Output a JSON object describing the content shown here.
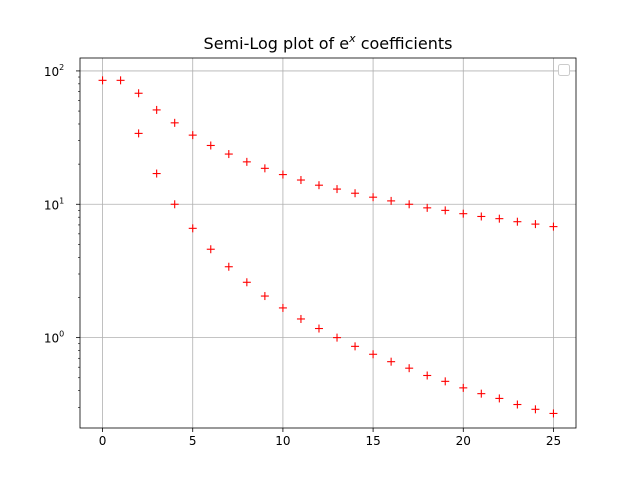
{
  "chart_data": {
    "type": "scatter",
    "title": {
      "text": "Semi-Log plot of e",
      "sup": "x",
      "suffix": " coefficients"
    },
    "xlabel": "",
    "ylabel": "",
    "xlim": [
      -1.25,
      26.25
    ],
    "ylim": [
      0.21,
      125
    ],
    "y_scale": "log",
    "x_ticks": [
      0,
      5,
      10,
      15,
      20,
      25
    ],
    "y_ticks": [
      {
        "value": 1,
        "base": "10",
        "exp": "0"
      },
      {
        "value": 10,
        "base": "10",
        "exp": "1"
      },
      {
        "value": 100,
        "base": "10",
        "exp": "2"
      }
    ],
    "grid": true,
    "legend": {
      "placement": "top-right",
      "entries": []
    },
    "marker": "+",
    "color": "#ff0000",
    "series": [
      {
        "x": [
          0,
          1,
          2,
          3,
          4,
          5,
          6,
          7,
          8,
          9,
          10,
          11,
          12,
          13,
          14,
          15,
          16,
          17,
          18,
          19,
          20,
          21,
          22,
          23,
          24,
          25
        ],
        "values": [
          85.0,
          85.0,
          68.0,
          51.0,
          40.8,
          33.0,
          27.6,
          23.8,
          20.8,
          18.6,
          16.7,
          15.2,
          13.9,
          13.0,
          12.1,
          11.3,
          10.6,
          10.0,
          9.4,
          9.0,
          8.5,
          8.1,
          7.8,
          7.4,
          7.1,
          6.8
        ]
      },
      {
        "x": [
          2,
          3,
          4,
          5,
          6,
          7,
          8,
          9,
          10,
          11,
          12,
          13,
          14,
          15,
          16,
          17,
          18,
          19,
          20,
          21,
          22,
          23,
          24,
          25
        ],
        "values": [
          34.0,
          17.0,
          10.0,
          6.6,
          4.6,
          3.4,
          2.6,
          2.05,
          1.67,
          1.38,
          1.17,
          1.0,
          0.86,
          0.75,
          0.66,
          0.59,
          0.52,
          0.47,
          0.42,
          0.38,
          0.35,
          0.315,
          0.29,
          0.27
        ]
      }
    ]
  }
}
